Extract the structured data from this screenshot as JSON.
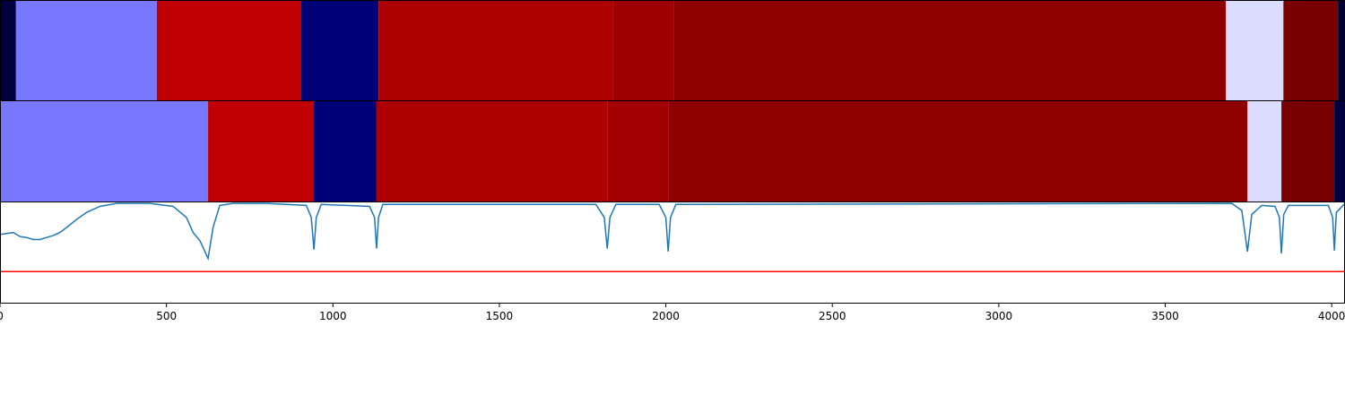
{
  "chart_data": {
    "type": "segments",
    "xlim": [
      0,
      4040
    ],
    "xticks": [
      0,
      500,
      1000,
      1500,
      2000,
      2500,
      3000,
      3500,
      4000
    ],
    "rows": [
      {
        "segments": [
          {
            "start": 0,
            "end": 48,
            "color": "#000040"
          },
          {
            "start": 48,
            "end": 471,
            "color": "#7777ff"
          },
          {
            "start": 471,
            "end": 905,
            "color": "#c00000"
          },
          {
            "start": 905,
            "end": 1137,
            "color": "#000077"
          },
          {
            "start": 1137,
            "end": 1842,
            "color": "#ad0000"
          },
          {
            "start": 1842,
            "end": 2023,
            "color": "#9e0000"
          },
          {
            "start": 2023,
            "end": 3682,
            "color": "#8e0000"
          },
          {
            "start": 3682,
            "end": 3855,
            "color": "#dcdcff"
          },
          {
            "start": 3855,
            "end": 4019,
            "color": "#7a0000"
          },
          {
            "start": 4019,
            "end": 4040,
            "color": "#000033"
          }
        ]
      },
      {
        "segments": [
          {
            "start": 0,
            "end": 625,
            "color": "#7777ff"
          },
          {
            "start": 625,
            "end": 943,
            "color": "#c00000"
          },
          {
            "start": 943,
            "end": 1131,
            "color": "#000077"
          },
          {
            "start": 1131,
            "end": 1824,
            "color": "#ad0000"
          },
          {
            "start": 1824,
            "end": 2007,
            "color": "#a20000"
          },
          {
            "start": 2007,
            "end": 3747,
            "color": "#8e0000"
          },
          {
            "start": 3747,
            "end": 3849,
            "color": "#dcdcff"
          },
          {
            "start": 3849,
            "end": 4008,
            "color": "#7a0000"
          },
          {
            "start": 4008,
            "end": 4040,
            "color": "#000040"
          }
        ]
      }
    ],
    "line": {
      "color": "#1f77b4",
      "ylim": [
        0,
        1
      ],
      "x": [
        0,
        20,
        40,
        60,
        80,
        100,
        120,
        140,
        160,
        180,
        200,
        230,
        260,
        300,
        350,
        450,
        520,
        560,
        580,
        600,
        610,
        625,
        640,
        660,
        700,
        800,
        920,
        935,
        943,
        950,
        965,
        1110,
        1125,
        1131,
        1137,
        1150,
        1790,
        1815,
        1824,
        1832,
        1850,
        1980,
        2000,
        2007,
        2014,
        2030,
        3700,
        3730,
        3747,
        3760,
        3790,
        3830,
        3843,
        3849,
        3856,
        3870,
        3990,
        4003,
        4008,
        4014,
        4040
      ],
      "y": [
        0.68,
        0.69,
        0.7,
        0.66,
        0.65,
        0.63,
        0.63,
        0.65,
        0.67,
        0.7,
        0.75,
        0.83,
        0.9,
        0.96,
        0.99,
        0.99,
        0.96,
        0.85,
        0.7,
        0.62,
        0.55,
        0.44,
        0.75,
        0.97,
        0.99,
        0.99,
        0.97,
        0.85,
        0.53,
        0.85,
        0.98,
        0.96,
        0.85,
        0.54,
        0.85,
        0.98,
        0.98,
        0.85,
        0.54,
        0.85,
        0.98,
        0.98,
        0.85,
        0.51,
        0.85,
        0.98,
        0.99,
        0.92,
        0.51,
        0.88,
        0.97,
        0.96,
        0.85,
        0.49,
        0.88,
        0.97,
        0.97,
        0.85,
        0.52,
        0.9,
        0.99
      ]
    },
    "threshold": {
      "value": 0.31,
      "color": "#ff0000"
    }
  }
}
